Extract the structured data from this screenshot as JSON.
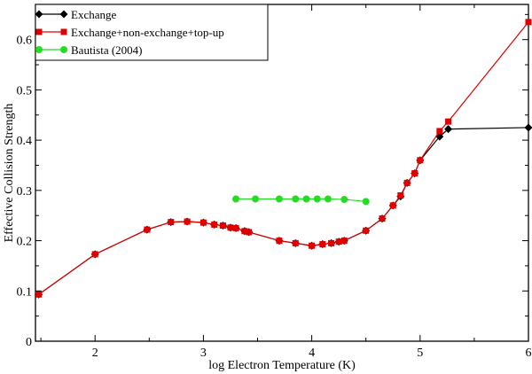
{
  "chart_data": {
    "type": "line",
    "xlabel": "log Electron Temperature (K)",
    "ylabel": "Effective Collision Strength",
    "xlim": [
      1.45,
      6.0
    ],
    "ylim": [
      0,
      0.67
    ],
    "xticks": [
      2,
      3,
      4,
      5,
      6
    ],
    "yticks": [
      0,
      0.1,
      0.2,
      0.3,
      0.4,
      0.5,
      0.6
    ],
    "xtick_labels": [
      "2",
      "3",
      "4",
      "5",
      "6"
    ],
    "ytick_labels": [
      "0",
      "0.1",
      "0.2",
      "0.3",
      "0.4",
      "0.5",
      "0.6"
    ],
    "grid": false,
    "legend_position": "top-left",
    "series": [
      {
        "name": "Exchange",
        "color": "#000000",
        "marker": "diamond",
        "x": [
          1.48,
          2.0,
          2.48,
          2.7,
          2.85,
          3.0,
          3.1,
          3.18,
          3.25,
          3.3,
          3.38,
          3.42,
          3.7,
          3.85,
          4.0,
          4.1,
          4.18,
          4.25,
          4.3,
          4.5,
          4.65,
          4.75,
          4.82,
          4.88,
          4.95,
          5.0,
          5.18,
          5.26,
          6.0
        ],
        "y": [
          0.093,
          0.173,
          0.222,
          0.237,
          0.238,
          0.236,
          0.232,
          0.23,
          0.226,
          0.225,
          0.219,
          0.217,
          0.2,
          0.195,
          0.19,
          0.193,
          0.195,
          0.198,
          0.2,
          0.22,
          0.244,
          0.27,
          0.288,
          0.315,
          0.334,
          0.36,
          0.407,
          0.422,
          0.425
        ]
      },
      {
        "name": "Exchange+non-exchange+top-up",
        "color": "#e00000",
        "marker": "square",
        "x": [
          1.48,
          2.0,
          2.48,
          2.7,
          2.85,
          3.0,
          3.1,
          3.18,
          3.25,
          3.3,
          3.38,
          3.42,
          3.7,
          3.85,
          4.0,
          4.1,
          4.18,
          4.25,
          4.3,
          4.5,
          4.65,
          4.75,
          4.82,
          4.88,
          4.95,
          5.0,
          5.18,
          5.26,
          6.0
        ],
        "y": [
          0.093,
          0.173,
          0.222,
          0.237,
          0.238,
          0.236,
          0.232,
          0.23,
          0.226,
          0.225,
          0.219,
          0.217,
          0.2,
          0.195,
          0.19,
          0.193,
          0.195,
          0.198,
          0.2,
          0.22,
          0.244,
          0.27,
          0.29,
          0.315,
          0.334,
          0.36,
          0.418,
          0.437,
          0.635
        ]
      },
      {
        "name": "Bautista (2004)",
        "color": "#22dd22",
        "marker": "circle",
        "x": [
          3.3,
          3.48,
          3.7,
          3.85,
          3.95,
          4.05,
          4.15,
          4.3,
          4.5
        ],
        "y": [
          0.283,
          0.283,
          0.283,
          0.283,
          0.283,
          0.283,
          0.283,
          0.282,
          0.278
        ]
      }
    ]
  }
}
